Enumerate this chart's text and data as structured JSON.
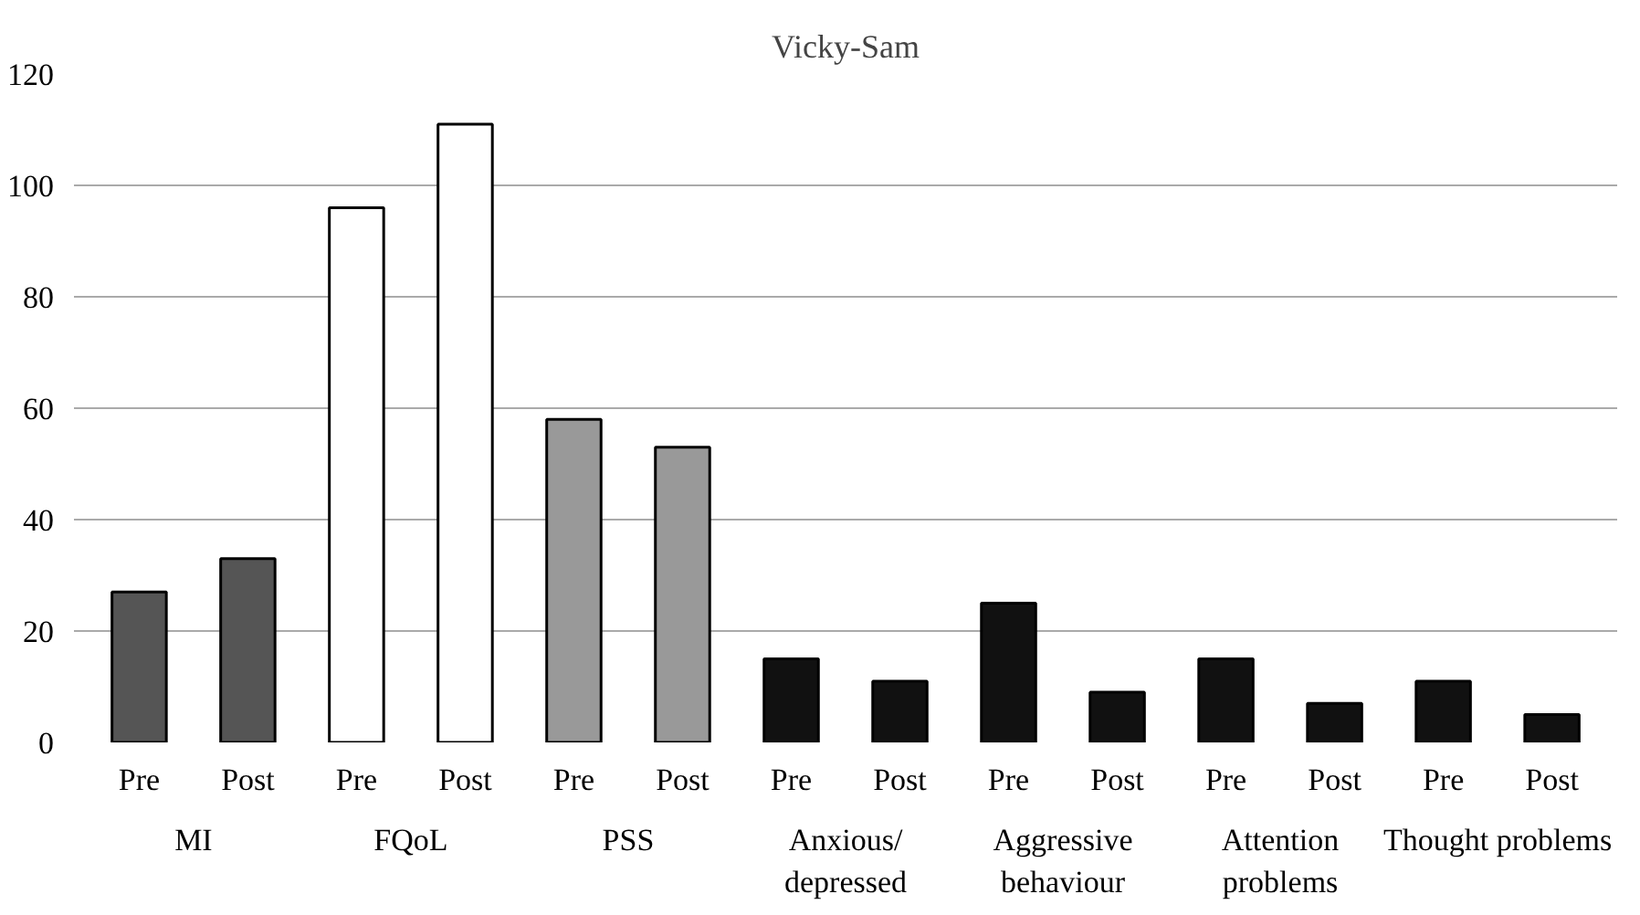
{
  "chart_data": {
    "type": "bar",
    "title": "Vicky-Sam",
    "categories": [
      "Pre",
      "Post",
      "Pre",
      "Post",
      "Pre",
      "Post",
      "Pre",
      "Post",
      "Pre",
      "Post",
      "Pre",
      "Post",
      "Pre",
      "Post"
    ],
    "values": [
      27,
      33,
      96,
      111,
      58,
      53,
      15,
      11,
      25,
      9,
      15,
      7,
      11,
      5
    ],
    "colors": [
      "#555555",
      "#555555",
      "#ffffff",
      "#ffffff",
      "#999999",
      "#999999",
      "#111111",
      "#111111",
      "#111111",
      "#111111",
      "#111111",
      "#111111",
      "#111111",
      "#111111"
    ],
    "annotations": [
      "MI",
      "FQoL",
      "PSS",
      "Anxious/\ndepressed",
      "Aggressive\nbehaviour",
      "Attention\nproblems",
      "Thought problems"
    ],
    "ylim": [
      0,
      120
    ],
    "yticks": [
      0,
      20,
      40,
      60,
      80,
      100,
      120
    ],
    "grid": "y"
  }
}
